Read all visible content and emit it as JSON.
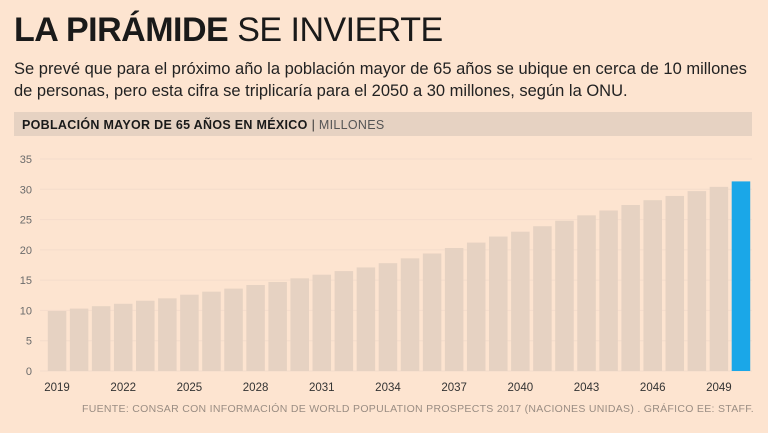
{
  "header": {
    "title_bold": "LA PIRÁMIDE",
    "title_light": "SE INVIERTE",
    "subtitle": "Se prevé que para el próximo año la población mayor de 65 años se ubique en cerca de 10 millones de personas, pero esta cifra se triplicaría para el 2050 a 30 millones, según la ONU."
  },
  "chart_header": {
    "label": "POBLACIÓN MAYOR DE 65 AÑOS EN MÉXICO",
    "separator": "|",
    "unit": "MILLONES"
  },
  "colors": {
    "bar": "#e6d2c2",
    "highlight": "#1aa7e8",
    "grid": "#f4dccb",
    "tick_text": "#6b6b6b"
  },
  "chart_data": {
    "type": "bar",
    "title": "POBLACIÓN MAYOR DE 65 AÑOS EN MÉXICO",
    "ylabel": "MILLONES",
    "xlabel": "",
    "ylim": [
      0,
      35
    ],
    "yticks": [
      0,
      5,
      10,
      15,
      20,
      25,
      30,
      35
    ],
    "grid": true,
    "categories": [
      "2019",
      "2020",
      "2021",
      "2022",
      "2023",
      "2024",
      "2025",
      "2026",
      "2027",
      "2028",
      "2029",
      "2030",
      "2031",
      "2032",
      "2033",
      "2034",
      "2035",
      "2036",
      "2037",
      "2038",
      "2039",
      "2040",
      "2041",
      "2042",
      "2043",
      "2044",
      "2045",
      "2046",
      "2047",
      "2048",
      "2049",
      "2050"
    ],
    "xtick_labels": [
      "2019",
      "2022",
      "2025",
      "2028",
      "2031",
      "2034",
      "2037",
      "2040",
      "2043",
      "2046",
      "2049"
    ],
    "values": [
      9.9,
      10.3,
      10.7,
      11.1,
      11.6,
      12.0,
      12.6,
      13.1,
      13.6,
      14.2,
      14.7,
      15.3,
      15.9,
      16.5,
      17.1,
      17.8,
      18.6,
      19.4,
      20.3,
      21.2,
      22.2,
      23.0,
      23.9,
      24.8,
      25.7,
      26.5,
      27.4,
      28.2,
      28.9,
      29.7,
      30.4,
      31.3
    ],
    "highlight_index": 31
  },
  "footer": {
    "source": "FUENTE: CONSAR CON INFORMACIÓN DE WORLD POPULATION PROSPECTS 2017 (NACIONES UNIDAS) . GRÁFICO EE: STAFF."
  }
}
